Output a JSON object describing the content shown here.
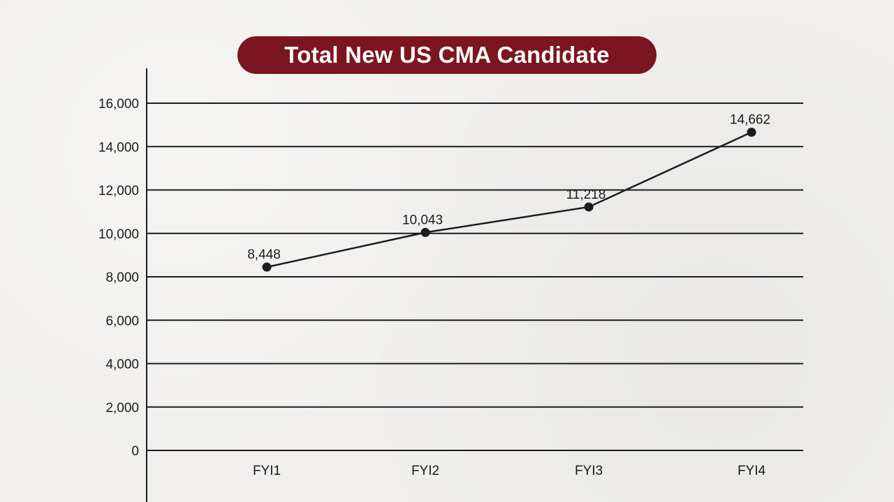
{
  "chart_data": {
    "type": "line",
    "title": "Total New US CMA Candidate",
    "categories": [
      "FYI1",
      "FYI2",
      "FYI3",
      "FYI4"
    ],
    "values": [
      8448,
      10043,
      11218,
      14662
    ],
    "data_labels": [
      "8,448",
      "10,043",
      "11,218",
      "14,662"
    ],
    "y_ticks": [
      0,
      2000,
      4000,
      6000,
      8000,
      10000,
      12000,
      14000,
      16000
    ],
    "y_tick_labels": [
      "0",
      "2,000",
      "4,000",
      "6,000",
      "8,000",
      "10,000",
      "12,000",
      "14,000",
      "16,000"
    ],
    "ylim": [
      0,
      16000
    ],
    "grid": true,
    "legend": "none"
  },
  "colors": {
    "title_background": "#7b1520",
    "title_text": "#ffffff",
    "line": "#1c1c1c",
    "grid": "#1c1c1c",
    "background": "#f0efed"
  }
}
